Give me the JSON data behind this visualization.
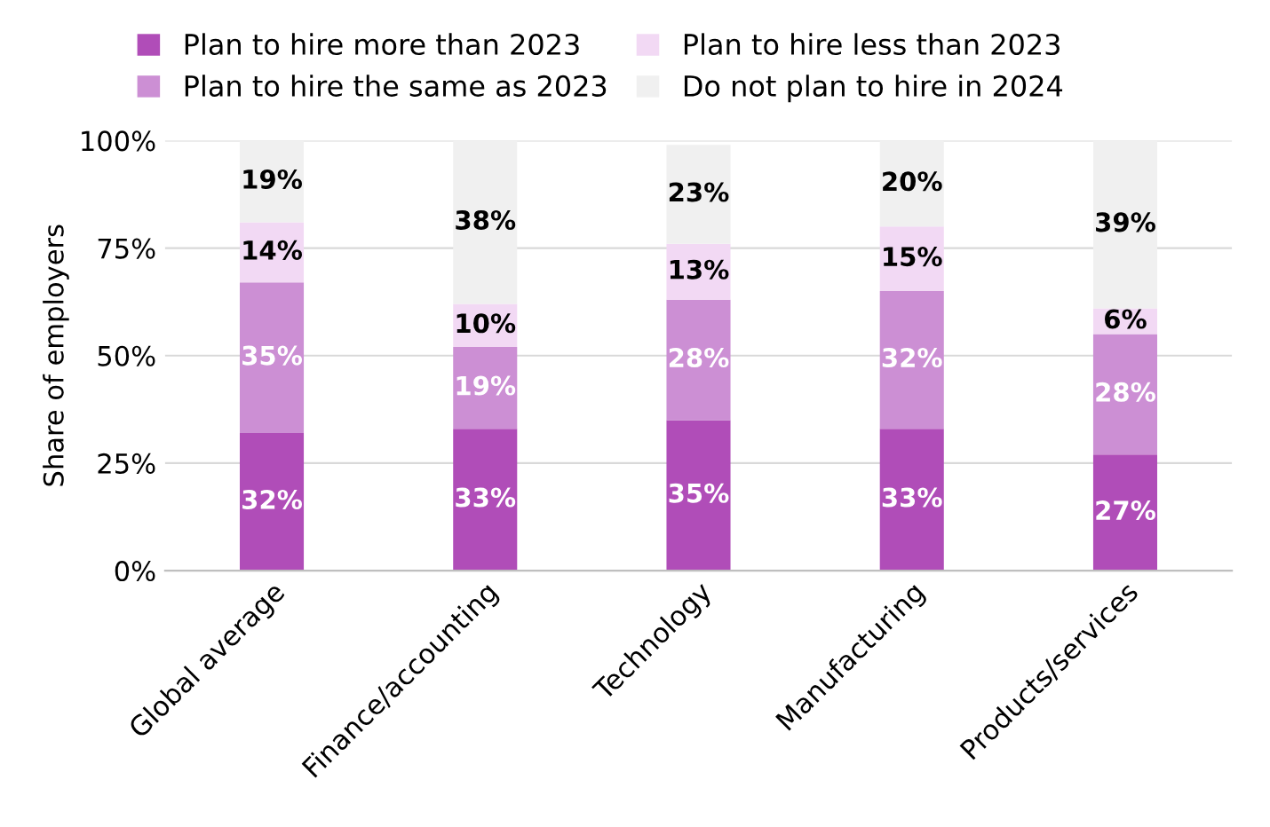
{
  "chart_data": {
    "type": "bar",
    "stacked": true,
    "ylabel": "Share of employers",
    "categories": [
      "Global average",
      "Finance/accounting",
      "Technology",
      "Manufacturing",
      "Products/services"
    ],
    "series": [
      {
        "name": "Plan to hire more than 2023",
        "color": "#b04db8",
        "values": [
          32,
          33,
          35,
          33,
          27
        ],
        "value_labels": [
          "32%",
          "33%",
          "35%",
          "33%",
          "27%"
        ]
      },
      {
        "name": "Plan to hire the same as 2023",
        "color": "#cc8fd4",
        "values": [
          35,
          19,
          28,
          32,
          28
        ],
        "value_labels": [
          "35%",
          "19%",
          "28%",
          "32%",
          "28%"
        ]
      },
      {
        "name": "Plan to hire less than 2023",
        "color": "#f2d9f4",
        "values": [
          14,
          10,
          13,
          15,
          6
        ],
        "value_labels": [
          "14%",
          "10%",
          "13%",
          "15%",
          "6%"
        ]
      },
      {
        "name": "Do not plan to hire in 2024",
        "color": "#f0f0f0",
        "values": [
          19,
          38,
          23,
          20,
          39
        ],
        "value_labels": [
          "19%",
          "38%",
          "23%",
          "20%",
          "39%"
        ]
      }
    ],
    "ylim": [
      0,
      100
    ],
    "yticks": [
      {
        "value": 0,
        "label": "0%"
      },
      {
        "value": 25,
        "label": "25%"
      },
      {
        "value": 50,
        "label": "50%"
      },
      {
        "value": 75,
        "label": "75%"
      },
      {
        "value": 100,
        "label": "100%"
      }
    ],
    "grid": "y",
    "legend": "top"
  }
}
